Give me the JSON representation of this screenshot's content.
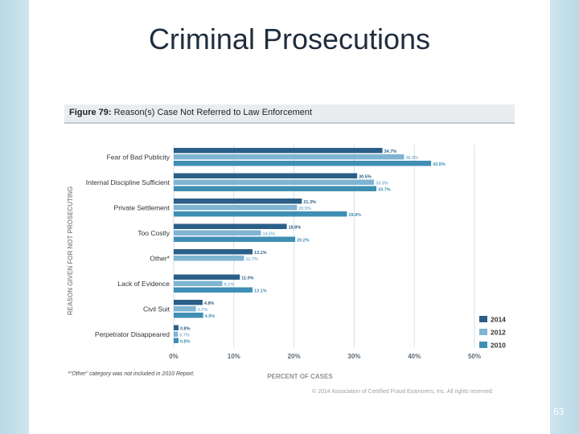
{
  "slide": {
    "title": "Criminal Prosecutions",
    "page_number": "63"
  },
  "figure": {
    "label": "Figure 79:",
    "title": "Reason(s) Case Not Referred to Law Enforcement",
    "footnote": "*\"Other\" category was not included in 2010 Report.",
    "copyright": "© 2014 Association of Certified Fraud Examiners, Inc. All rights reserved."
  },
  "chart_data": {
    "type": "bar",
    "orientation": "horizontal",
    "xlabel": "PERCENT OF CASES",
    "ylabel": "REASON GIVEN FOR NOT PROSECUTING",
    "xlim": [
      0,
      50
    ],
    "x_ticks": [
      "0%",
      "10%",
      "20%",
      "30%",
      "40%",
      "50%"
    ],
    "grid": true,
    "legend_position": "bottom-right",
    "categories": [
      "Fear of Bad Publicity",
      "Internal Discipline Sufficient",
      "Private Settlement",
      "Too Costly",
      "Other*",
      "Lack of Evidence",
      "Civil Suit",
      "Perpetrator Disappeared"
    ],
    "series": [
      {
        "name": "2014",
        "color": "#2c5f88",
        "values": [
          34.7,
          30.5,
          21.3,
          18.8,
          13.1,
          11.0,
          4.8,
          0.8
        ],
        "labels": [
          "34.7%",
          "30.5%",
          "21.3%",
          "18.8%",
          "13.1%",
          "11.0%",
          "4.8%",
          "0.8%"
        ]
      },
      {
        "name": "2012",
        "color": "#7fb4d2",
        "values": [
          38.3,
          33.3,
          20.5,
          14.5,
          11.7,
          8.1,
          3.7,
          0.7
        ],
        "labels": [
          "38.3%",
          "33.3%",
          "20.5%",
          "14.5%",
          "11.7%",
          "8.1%",
          "3.7%",
          "0.7%"
        ]
      },
      {
        "name": "2010",
        "color": "#3f8fb4",
        "values": [
          42.8,
          33.7,
          28.8,
          20.2,
          null,
          13.1,
          4.9,
          0.8
        ],
        "labels": [
          "42.8%",
          "33.7%",
          "28.8%",
          "20.2%",
          "",
          "13.1%",
          "4.9%",
          "0.8%"
        ]
      }
    ]
  }
}
